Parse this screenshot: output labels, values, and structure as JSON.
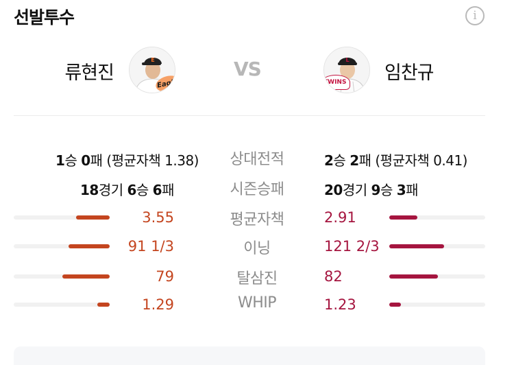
{
  "header": {
    "title": "선발투수",
    "info_icon": "i"
  },
  "home": {
    "name": "류현진",
    "team_logo_text": "Eagles",
    "cap_letter": "E",
    "record": {
      "w": "1",
      "w_unit": "승",
      "l": "0",
      "l_unit": "패",
      "era_note": "(평균자책 1.38)"
    },
    "season": {
      "g": "18",
      "g_unit": "경기",
      "w": "6",
      "w_unit": "승",
      "l": "6",
      "l_unit": "패"
    },
    "color": "#c4451f"
  },
  "away": {
    "name": "임찬규",
    "team_logo_text": "TWINS",
    "cap_letter": "L",
    "record": {
      "w": "2",
      "w_unit": "승",
      "l": "2",
      "l_unit": "패",
      "era_note": "(평균자책 0.41)"
    },
    "season": {
      "g": "20",
      "g_unit": "경기",
      "w": "9",
      "w_unit": "승",
      "l": "3",
      "l_unit": "패"
    },
    "color": "#a5153f"
  },
  "vs_label": "VS",
  "labels": {
    "head_to_head": "상대전적",
    "season_record": "시즌승패"
  },
  "stats": [
    {
      "label": "평균자책",
      "home": "3.55",
      "away": "2.91",
      "home_level": 0.35,
      "away_level": 0.29
    },
    {
      "label": "이닝",
      "home": "91 1/3",
      "away": "121 2/3",
      "home_level": 0.43,
      "away_level": 0.57
    },
    {
      "label": "탈삼진",
      "home": "79",
      "away": "82",
      "home_level": 0.49,
      "away_level": 0.51
    },
    {
      "label": "WHIP",
      "home": "1.29",
      "away": "1.23",
      "home_level": 0.13,
      "away_level": 0.12
    }
  ]
}
